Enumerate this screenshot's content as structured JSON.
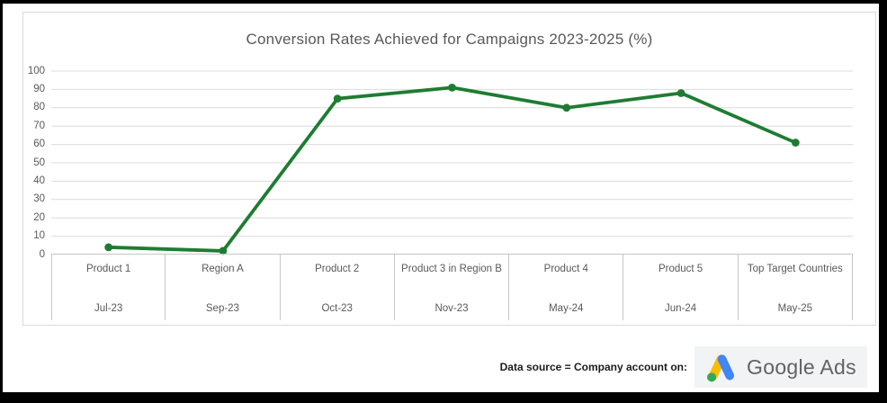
{
  "colors": {
    "line": "#1e7c32",
    "grid": "#dcdcdc",
    "axis": "#c6c6c6",
    "text_muted": "#595959",
    "chip_bg": "#f1f3f4",
    "google_blue": "#4285f4",
    "google_yellow": "#fbbc04",
    "google_green": "#34a853",
    "logo_text_color": "#5f6368"
  },
  "chart_data": {
    "type": "line",
    "title": "Conversion Rates Achieved for Campaigns 2023-2025 (%)",
    "categories": [
      "Product 1",
      "Region A",
      "Product 2",
      "Product 3 in Region B",
      "Product 4",
      "Product 5",
      "Top Target Countries"
    ],
    "category_dates": [
      "Jul-23",
      "Sep-23",
      "Oct-23",
      "Nov-23",
      "May-24",
      "Jun-24",
      "May-25"
    ],
    "series": [
      {
        "name": "Conversion rate (%)",
        "values": [
          4,
          2,
          85,
          91,
          80,
          88,
          61
        ]
      }
    ],
    "ylim": [
      0,
      100
    ],
    "ytick_step": 10,
    "ytick_labels": [
      "0",
      "10",
      "20",
      "30",
      "40",
      "50",
      "60",
      "70",
      "80",
      "90",
      "100"
    ],
    "grid": "horizontal",
    "legend": "none",
    "marker": "circle"
  },
  "footer": {
    "caption": "Data source = Company account on:",
    "logo_text": "Google Ads"
  }
}
